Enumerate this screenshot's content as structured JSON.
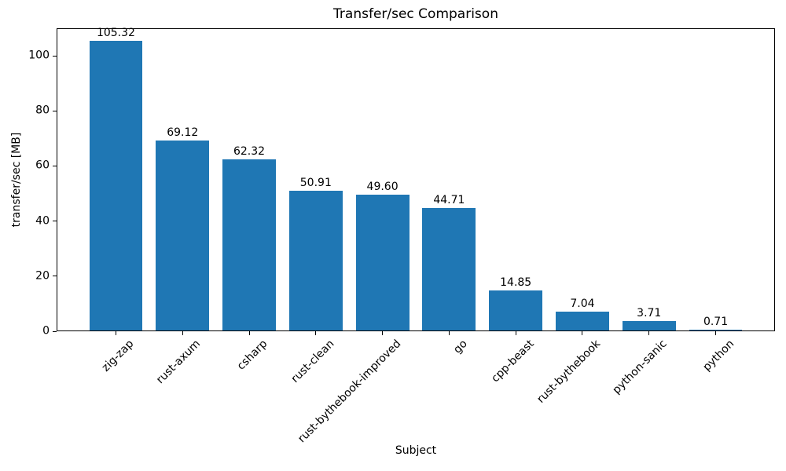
{
  "chart_data": {
    "type": "bar",
    "title": "Transfer/sec Comparison",
    "xlabel": "Subject",
    "ylabel": "transfer/sec [MB]",
    "categories": [
      "zig-zap",
      "rust-axum",
      "csharp",
      "rust-clean",
      "rust-bythebook-improved",
      "go",
      "cpp-beast",
      "rust-bythebook",
      "python-sanic",
      "python"
    ],
    "values": [
      105.32,
      69.12,
      62.32,
      50.91,
      49.6,
      44.71,
      14.85,
      7.04,
      3.71,
      0.71
    ],
    "value_labels": [
      "105.32",
      "69.12",
      "62.32",
      "50.91",
      "49.60",
      "44.71",
      "14.85",
      "7.04",
      "3.71",
      "0.71"
    ],
    "ylim": [
      0,
      110
    ],
    "yticks": [
      0,
      20,
      40,
      60,
      80,
      100
    ],
    "bar_color": "#1f77b4",
    "text_color": "#000000",
    "xtick_rotation_deg": 45,
    "grid": false,
    "legend": null
  }
}
